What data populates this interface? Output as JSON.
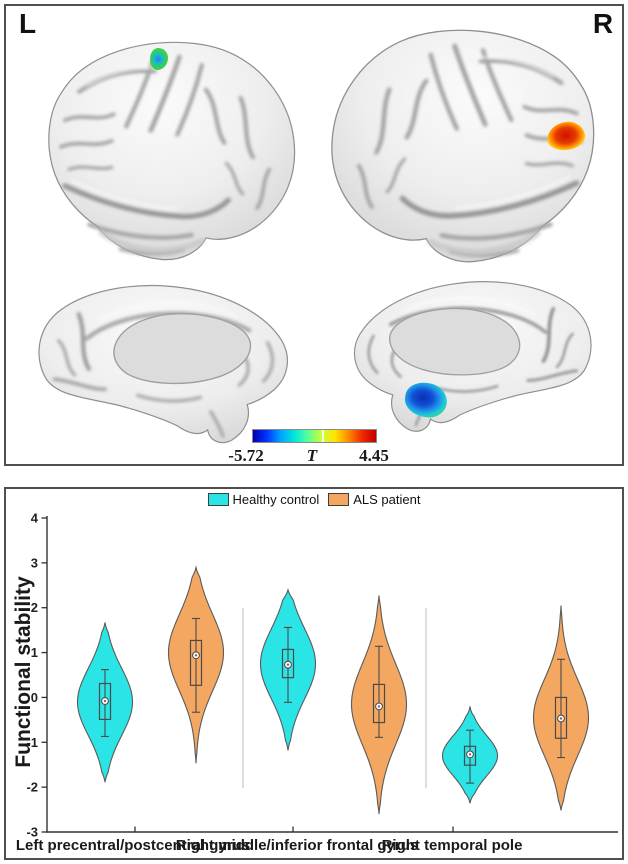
{
  "brain_panel": {
    "left_label": "L",
    "right_label": "R",
    "colorbar": {
      "min_label": "-5.72",
      "symbol": "T",
      "max_label": "4.45",
      "colors": [
        "#0000b0",
        "#0033ff",
        "#00a2ff",
        "#00e4e0",
        "#55ff99",
        "#c8ff3c",
        "#ffe400",
        "#ff8800",
        "#f02800",
        "#c00000"
      ]
    }
  },
  "colors": {
    "healthy_control": "#2AE4E6",
    "als_patient": "#F4A761",
    "violin_outline": "#5a5a5a",
    "box_outline": "#4a4a4a",
    "median_dot": "#8a5e5e",
    "separator": "#c9c9c9",
    "axis": "#333333"
  },
  "chart_data": {
    "type": "violin",
    "ylabel": "Functional stability",
    "ylim": [
      -3,
      4
    ],
    "yticks": [
      4,
      3,
      2,
      1,
      0,
      -1,
      -2,
      -3
    ],
    "categories": [
      "Left precentral/postcentral gyrus",
      "Right middle/inferior frontal gyrus",
      "Right temporal pole"
    ],
    "legend_position": "top center",
    "grid": false,
    "series": [
      {
        "name": "Healthy control",
        "color": "#2AE4E6",
        "violins": [
          {
            "min": -1.89,
            "max": 1.67,
            "q1": -0.49,
            "q3": 0.31,
            "median": -0.08,
            "whisker_low": -0.87,
            "whisker_high": 0.62,
            "mode": -0.1,
            "sigma": 0.75
          },
          {
            "min": -1.18,
            "max": 2.4,
            "q1": 0.44,
            "q3": 1.07,
            "median": 0.73,
            "whisker_low": -0.11,
            "whisker_high": 1.56,
            "mode": 0.75,
            "sigma": 0.78
          },
          {
            "min": -2.36,
            "max": -0.2,
            "q1": -1.51,
            "q3": -1.09,
            "median": -1.27,
            "whisker_low": -1.91,
            "whisker_high": -0.73,
            "mode": -1.3,
            "sigma": 0.45
          }
        ]
      },
      {
        "name": "ALS patient",
        "color": "#F4A761",
        "violins": [
          {
            "min": -1.47,
            "max": 2.9,
            "q1": 0.27,
            "q3": 1.27,
            "median": 0.94,
            "whisker_low": -0.33,
            "whisker_high": 1.76,
            "mode": 1.0,
            "sigma": 0.85
          },
          {
            "min": -2.6,
            "max": 2.27,
            "q1": -0.56,
            "q3": 0.29,
            "median": -0.2,
            "whisker_low": -0.89,
            "whisker_high": 1.14,
            "mode": -0.15,
            "sigma": 0.9
          },
          {
            "min": -2.52,
            "max": 2.05,
            "q1": -0.91,
            "q3": 0.0,
            "median": -0.47,
            "whisker_low": -1.34,
            "whisker_high": 0.85,
            "mode": -0.45,
            "sigma": 0.85
          }
        ]
      }
    ]
  }
}
